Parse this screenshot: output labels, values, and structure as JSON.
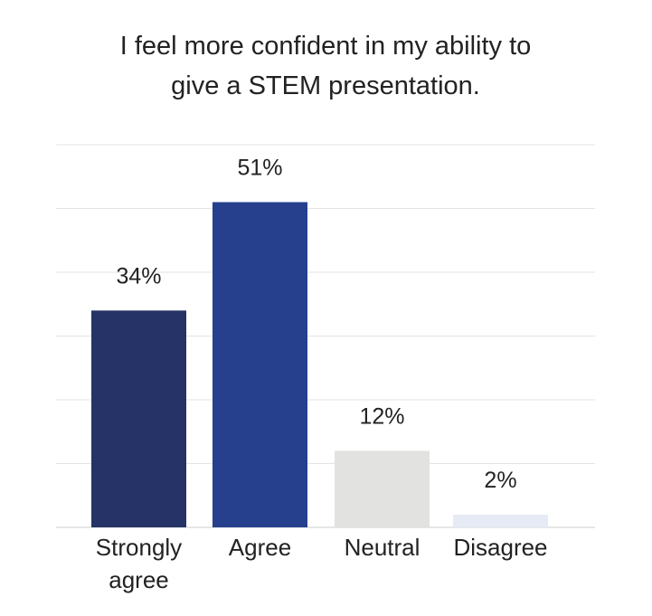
{
  "chart_data": {
    "type": "bar",
    "title": [
      "I feel more confident in my ability to",
      "give a STEM presentation."
    ],
    "categories": [
      [
        "Strongly",
        "agree"
      ],
      [
        "Agree"
      ],
      [
        "Neutral"
      ],
      [
        "Disagree"
      ]
    ],
    "values": [
      34,
      51,
      12,
      2
    ],
    "value_labels": [
      "34%",
      "51%",
      "12%",
      "2%"
    ],
    "colors": [
      "#253366",
      "#26408e",
      "#e2e2e0",
      "#e6eaf4"
    ],
    "ylim": [
      0,
      60
    ],
    "grid": true,
    "legend": "none"
  }
}
